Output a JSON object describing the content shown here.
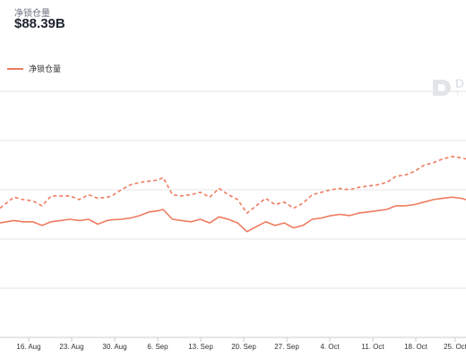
{
  "header": {
    "metric_label": "净锁仓量",
    "metric_value": "$88.39B"
  },
  "legend": {
    "series_label": "净锁仓量"
  },
  "watermark": {
    "text": "D",
    "subtext": "Y"
  },
  "colors": {
    "series": "#ee7b5f",
    "grid": "#e6e6e6",
    "axis": "#333333"
  },
  "chart_data": {
    "type": "line",
    "x_tick_labels": [
      "16. Aug",
      "23. Aug",
      "30. Aug",
      "6. Sep",
      "13. Sep",
      "20. Sep",
      "27. Sep",
      "4. Oct",
      "11. Oct",
      "18. Oct",
      "25. Oct"
    ],
    "grid": true,
    "legend_position": "top-left",
    "series": [
      {
        "name": "净锁仓量",
        "style": "solid",
        "x": [
          0,
          3,
          5,
          7,
          9,
          11,
          13,
          15,
          17,
          19,
          21,
          23,
          24,
          26,
          28,
          30,
          32,
          34,
          35,
          37,
          39,
          41,
          43,
          45,
          47,
          49,
          51,
          53,
          55,
          57,
          59,
          61,
          63,
          65,
          67,
          69,
          71,
          73,
          75,
          77,
          79,
          81,
          83,
          85,
          87,
          89,
          91,
          93,
          95,
          97,
          99,
          100
        ],
        "values": [
          46.5,
          47.5,
          47.0,
          47.0,
          45.5,
          47.0,
          47.5,
          48.0,
          47.5,
          48.0,
          46.0,
          47.5,
          47.8,
          48.0,
          48.5,
          49.5,
          51.0,
          51.5,
          52.0,
          48.0,
          47.5,
          47.0,
          48.0,
          46.5,
          49.0,
          48.0,
          46.5,
          43.0,
          45.0,
          47.0,
          45.5,
          46.5,
          44.5,
          45.5,
          48.0,
          48.5,
          49.5,
          50.0,
          49.5,
          50.5,
          51.0,
          51.5,
          52.0,
          53.5,
          53.5,
          54.0,
          55.0,
          56.0,
          56.5,
          57.0,
          56.5,
          56.0
        ]
      },
      {
        "name": "",
        "style": "dashed",
        "x": [
          0,
          3,
          5,
          7,
          9,
          11,
          13,
          15,
          17,
          19,
          21,
          23,
          24,
          26,
          28,
          30,
          32,
          34,
          35,
          37,
          39,
          41,
          43,
          45,
          47,
          49,
          51,
          53,
          55,
          57,
          59,
          61,
          63,
          65,
          67,
          69,
          71,
          73,
          75,
          77,
          79,
          81,
          83,
          85,
          87,
          89,
          91,
          93,
          95,
          97,
          99,
          100
        ],
        "values": [
          52.5,
          57.0,
          56.0,
          55.5,
          53.5,
          57.5,
          57.5,
          57.5,
          56.0,
          58.0,
          56.5,
          57.0,
          57.5,
          60.0,
          62.0,
          63.0,
          63.5,
          64.0,
          65.0,
          58.0,
          57.5,
          58.0,
          59.0,
          57.0,
          60.5,
          58.0,
          56.0,
          50.5,
          53.5,
          56.5,
          54.0,
          55.0,
          52.5,
          54.5,
          58.0,
          59.0,
          60.0,
          60.5,
          60.0,
          61.0,
          61.5,
          62.0,
          63.0,
          65.5,
          66.0,
          67.5,
          70.0,
          71.0,
          72.5,
          73.5,
          73.0,
          72.5
        ]
      }
    ]
  }
}
